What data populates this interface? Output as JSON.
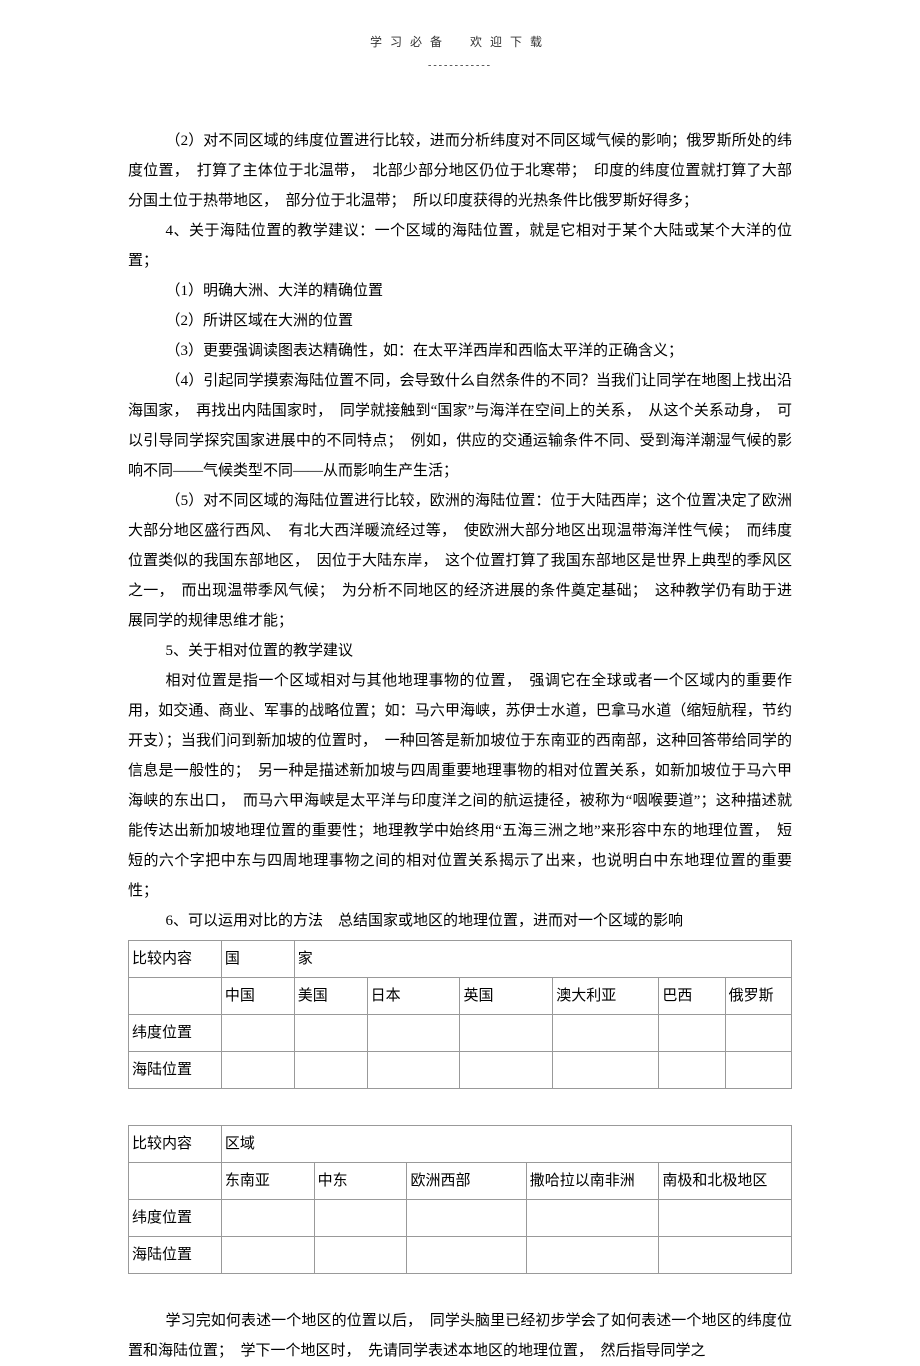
{
  "header": {
    "title": "学习必备　欢迎下载",
    "underline": "------------"
  },
  "paragraphs": {
    "p1": "（2）对不同区域的纬度位置进行比较，进而分析纬度对不同区域气候的影响；俄罗斯所处的纬度位置，　打算了主体位于北温带，　北部少部分地区仍位于北寒带；　印度的纬度位置就打算了大部分国土位于热带地区，　部分位于北温带；　所以印度获得的光热条件比俄罗斯好得多；",
    "p2": "4、关于海陆位置的教学建议：一个区域的海陆位置，就是它相对于某个大陆或某个大洋的位置；",
    "p3": "（1）明确大洲、大洋的精确位置",
    "p4": "（2）所讲区域在大洲的位置",
    "p5": "（3）更要强调读图表达精确性，如：在太平洋西岸和西临太平洋的正确含义；",
    "p6": "（4）引起同学摸索海陆位置不同，会导致什么自然条件的不同？当我们让同学在地图上找出沿海国家，　再找出内陆国家时，　同学就接触到“国家”与海洋在空间上的关系，　从这个关系动身，　可以引导同学探究国家进展中的不同特点；　例如，供应的交通运输条件不同、受到海洋潮湿气候的影响不同——气候类型不同——从而影响生产生活；",
    "p7": "（5）对不同区域的海陆位置进行比较，欧洲的海陆位置：位于大陆西岸；这个位置决定了欧洲大部分地区盛行西风、　有北大西洋暖流经过等，　使欧洲大部分地区出现温带海洋性气候；　而纬度位置类似的我国东部地区，　因位于大陆东岸，　这个位置打算了我国东部地区是世界上典型的季风区之一，　而出现温带季风气候；　为分析不同地区的经济进展的条件奠定基础；　这种教学仍有助于进展同学的规律思维才能；",
    "p8": "5、关于相对位置的教学建议",
    "p9": "相对位置是指一个区域相对与其他地理事物的位置，　强调它在全球或者一个区域内的重要作用，如交通、商业、军事的战略位置；如：马六甲海峡，苏伊士水道，巴拿马水道（缩短航程，节约开支）；当我们问到新加坡的位置时，　一种回答是新加坡位于东南亚的西南部，这种回答带给同学的信息是一般性的；　另一种是描述新加坡与四周重要地理事物的相对位置关系，如新加坡位于马六甲海峡的东出口，　而马六甲海峡是太平洋与印度洋之间的航运捷径，被称为“咽喉要道”；这种描述就能传达出新加坡地理位置的重要性；地理教学中始终用“五海三洲之地”来形容中东的地理位置，　短短的六个字把中东与四周地理事物之间的相对位置关系揭示了出来，也说明白中东地理位置的重要性；",
    "p10": "6、可以运用对比的方法　总结国家或地区的地理位置，进而对一个区域的影响",
    "p11": "学习完如何表述一个地区的位置以后，　同学头脑里已经初步学会了如何表述一个地区的纬度位置和海陆位置；　学下一个地区时，　先请同学表述本地区的地理位置，　然后指导同学之"
  },
  "table1": {
    "r0": [
      "比较内容",
      "国",
      "家"
    ],
    "r1": [
      "",
      "中国",
      "美国",
      "日本",
      "英国",
      "澳大利亚",
      "巴西",
      "俄罗斯"
    ],
    "r2": [
      "纬度位置",
      "",
      "",
      "",
      "",
      "",
      "",
      ""
    ],
    "r3": [
      "海陆位置",
      "",
      "",
      "",
      "",
      "",
      "",
      ""
    ]
  },
  "table2": {
    "r0": [
      "比较内容",
      "区域"
    ],
    "r1": [
      "",
      "东南亚",
      "中东",
      "欧洲西部",
      "撒哈拉以南非洲",
      "南极和北极地区"
    ],
    "r2": [
      "纬度位置",
      "",
      "",
      "",
      "",
      ""
    ],
    "r3": [
      "海陆位置",
      "",
      "",
      "",
      "",
      ""
    ]
  }
}
